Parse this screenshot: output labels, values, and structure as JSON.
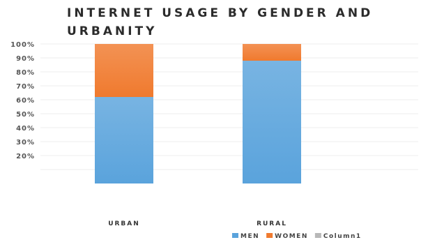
{
  "chart_data": {
    "type": "bar",
    "stacked": true,
    "title": "INTERNET USAGE BY GENDER AND URBANITY",
    "categories": [
      "URBAN",
      "RURAL"
    ],
    "series": [
      {
        "name": "MEN",
        "values": [
          62,
          88
        ],
        "color": "#5aa3dc"
      },
      {
        "name": "WOMEN",
        "values": [
          38,
          12
        ],
        "color": "#f07a2e"
      },
      {
        "name": "Column1",
        "values": [
          0,
          0
        ],
        "color": "#b8b8b8"
      }
    ],
    "yticks": [
      "100%",
      "90%",
      "80%",
      "70%",
      "60%",
      "50%",
      "40%",
      "30%",
      "20%"
    ],
    "ylim": [
      0,
      100
    ],
    "grid": true,
    "legend_position": "bottom-right"
  }
}
